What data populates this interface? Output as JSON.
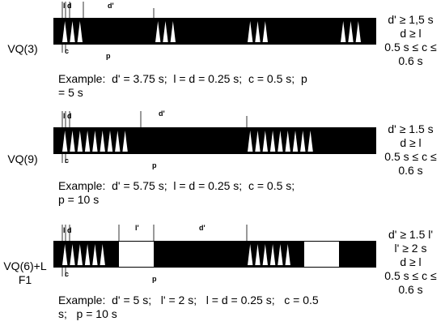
{
  "panels": [
    {
      "name": "VQ(3)",
      "name_lines": [
        "VQ(3)"
      ],
      "labels": {
        "l": "l",
        "d": "d",
        "dp": "d'",
        "c": "c",
        "p": "p",
        "lp": ""
      },
      "conditions": [
        "d' ≥ 1,5 s",
        "d ≥ l",
        "0.5 s ≤ c ≤",
        "0.6 s"
      ],
      "example_lines": [
        "Example:  d' = 3.75 s;  l = d = 0.25 s;  c = 0.5 s;  p",
        "= 5 s"
      ],
      "groups": [
        3,
        3,
        3,
        3
      ],
      "white_blocks": 0
    },
    {
      "name": "VQ(9)",
      "name_lines": [
        "VQ(9)"
      ],
      "labels": {
        "l": "l",
        "d": "d",
        "dp": "d'",
        "c": "c",
        "p": "p",
        "lp": ""
      },
      "conditions": [
        "d' ≥ 1.5 s",
        "d ≥ l",
        "0.5 s ≤ c ≤",
        "0.6 s"
      ],
      "example_lines": [
        "Example:  d' = 5.75 s;  l = d = 0.25 s;  c = 0.5 s;",
        "p = 10 s"
      ],
      "groups": [
        9,
        9
      ],
      "white_blocks": 0
    },
    {
      "name": "VQ(6)+LF1",
      "name_lines": [
        "VQ(6)+L",
        "F1"
      ],
      "labels": {
        "l": "l",
        "d": "d",
        "dp": "d'",
        "c": "c",
        "p": "p",
        "lp": "l'"
      },
      "conditions": [
        "d' ≥ 1.5 l'",
        "l' ≥ 2 s",
        "d ≥ l",
        "0.5 s ≤ c ≤",
        "0.6 s"
      ],
      "example_lines": [
        "Example:  d' = 5 s;   l' = 2 s;   l = d = 0.25 s;   c = 0.5",
        "s;   p = 10 s"
      ],
      "groups": [
        6,
        6
      ],
      "white_blocks": 2
    }
  ]
}
